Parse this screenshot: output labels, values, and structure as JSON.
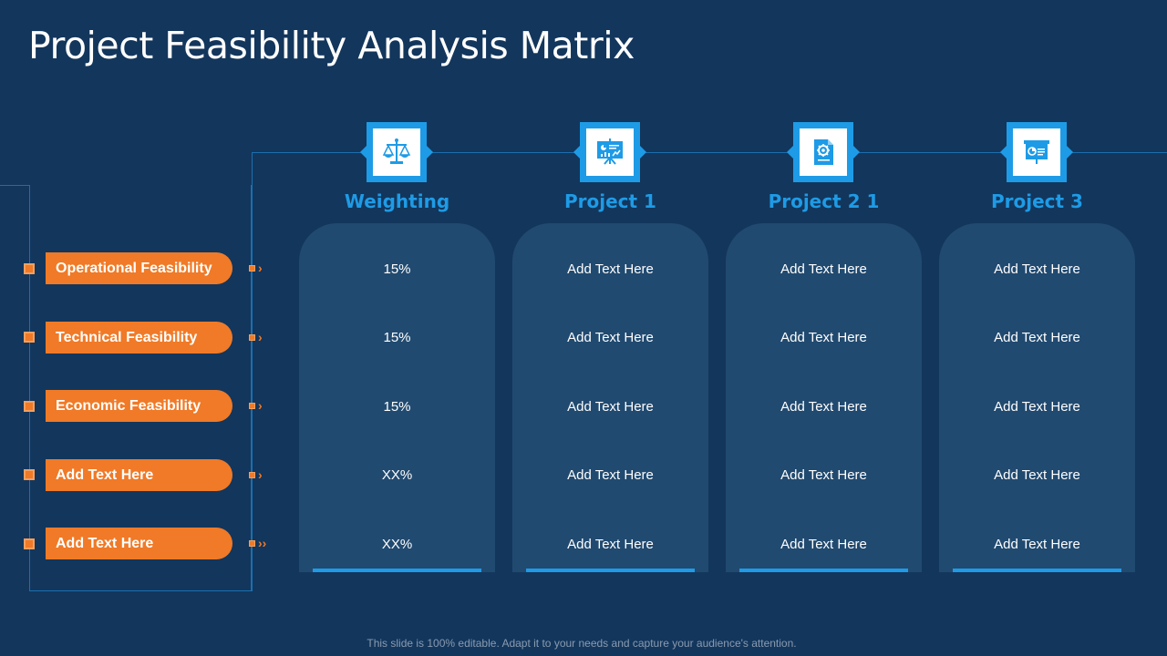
{
  "title": "Project Feasibility Analysis Matrix",
  "columns": [
    {
      "header": "Weighting",
      "icon": "scales-icon"
    },
    {
      "header": "Project  1",
      "icon": "presentation-chart-icon"
    },
    {
      "header": "Project  2 1",
      "icon": "document-gear-icon"
    },
    {
      "header": "Project  3",
      "icon": "projector-screen-icon"
    }
  ],
  "rows": [
    {
      "label": "Operational Feasibility",
      "chevron": "›",
      "values": [
        "15%",
        "Add Text Here",
        "Add Text Here",
        "Add Text Here"
      ]
    },
    {
      "label": "Technical Feasibility",
      "chevron": "›",
      "values": [
        "15%",
        "Add Text Here",
        "Add Text Here",
        "Add Text Here"
      ]
    },
    {
      "label": "Economic Feasibility",
      "chevron": "›",
      "values": [
        "15%",
        "Add Text Here",
        "Add Text Here",
        "Add Text Here"
      ]
    },
    {
      "label": "Add Text Here",
      "chevron": "›",
      "values": [
        "XX%",
        "Add Text Here",
        "Add Text Here",
        "Add Text Here"
      ]
    },
    {
      "label": "Add Text Here",
      "chevron": "››",
      "values": [
        "XX%",
        "Add Text Here",
        "Add Text Here",
        "Add Text Here"
      ]
    }
  ],
  "footer": "This slide is 100% editable. Adapt it to your needs and capture your audience's attention.",
  "colors": {
    "background": "#13365c",
    "accent_blue": "#1e9be6",
    "accent_orange": "#f07a27",
    "column_fill": "#214a70"
  }
}
